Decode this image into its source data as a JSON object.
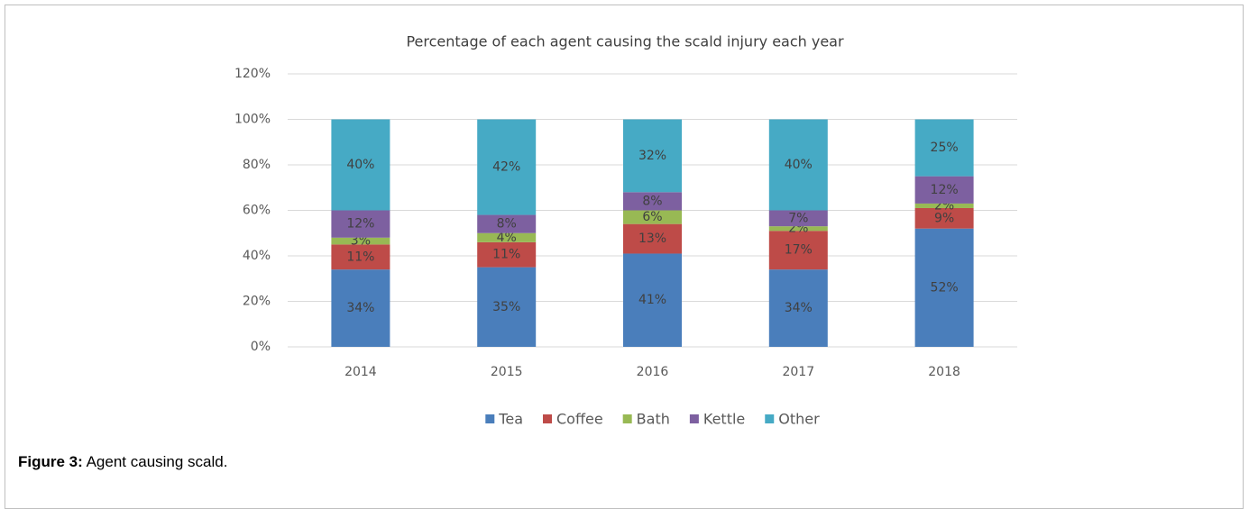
{
  "chart_data": {
    "type": "stacked_bar",
    "title": "Percentage of each agent causing the scald injury each year",
    "categories": [
      "2014",
      "2015",
      "2016",
      "2017",
      "2018"
    ],
    "series": [
      {
        "name": "Tea",
        "color": "#4a7ebb",
        "values": [
          34,
          35,
          41,
          34,
          52
        ],
        "value_labels": [
          "34%",
          "35%",
          "41%",
          "34%",
          "52%"
        ]
      },
      {
        "name": "Coffee",
        "color": "#be4b48",
        "values": [
          11,
          11,
          13,
          17,
          9
        ],
        "value_labels": [
          "11%",
          "11%",
          "13%",
          "17%",
          "9%"
        ]
      },
      {
        "name": "Bath",
        "color": "#98b954",
        "values": [
          3,
          4,
          6,
          2,
          2
        ],
        "value_labels": [
          "3%",
          "4%",
          "6%",
          "2%",
          "2%"
        ]
      },
      {
        "name": "Kettle",
        "color": "#7d60a0",
        "values": [
          12,
          8,
          8,
          7,
          12
        ],
        "value_labels": [
          "12%",
          "8%",
          "8%",
          "7%",
          "12%"
        ]
      },
      {
        "name": "Other",
        "color": "#46aac5",
        "values": [
          40,
          42,
          32,
          40,
          25
        ],
        "value_labels": [
          "40%",
          "42%",
          "32%",
          "40%",
          "25%"
        ]
      }
    ],
    "ylim": [
      0,
      120
    ],
    "yticks": [
      {
        "value": 0,
        "label": "0%"
      },
      {
        "value": 20,
        "label": "20%"
      },
      {
        "value": 40,
        "label": "40%"
      },
      {
        "value": 60,
        "label": "60%"
      },
      {
        "value": 80,
        "label": "80%"
      },
      {
        "value": 100,
        "label": "100%"
      },
      {
        "value": 120,
        "label": "120%"
      }
    ],
    "grid": true,
    "legend": "bottom"
  },
  "caption": {
    "label": "Figure 3:",
    "text": "Agent causing scald."
  }
}
